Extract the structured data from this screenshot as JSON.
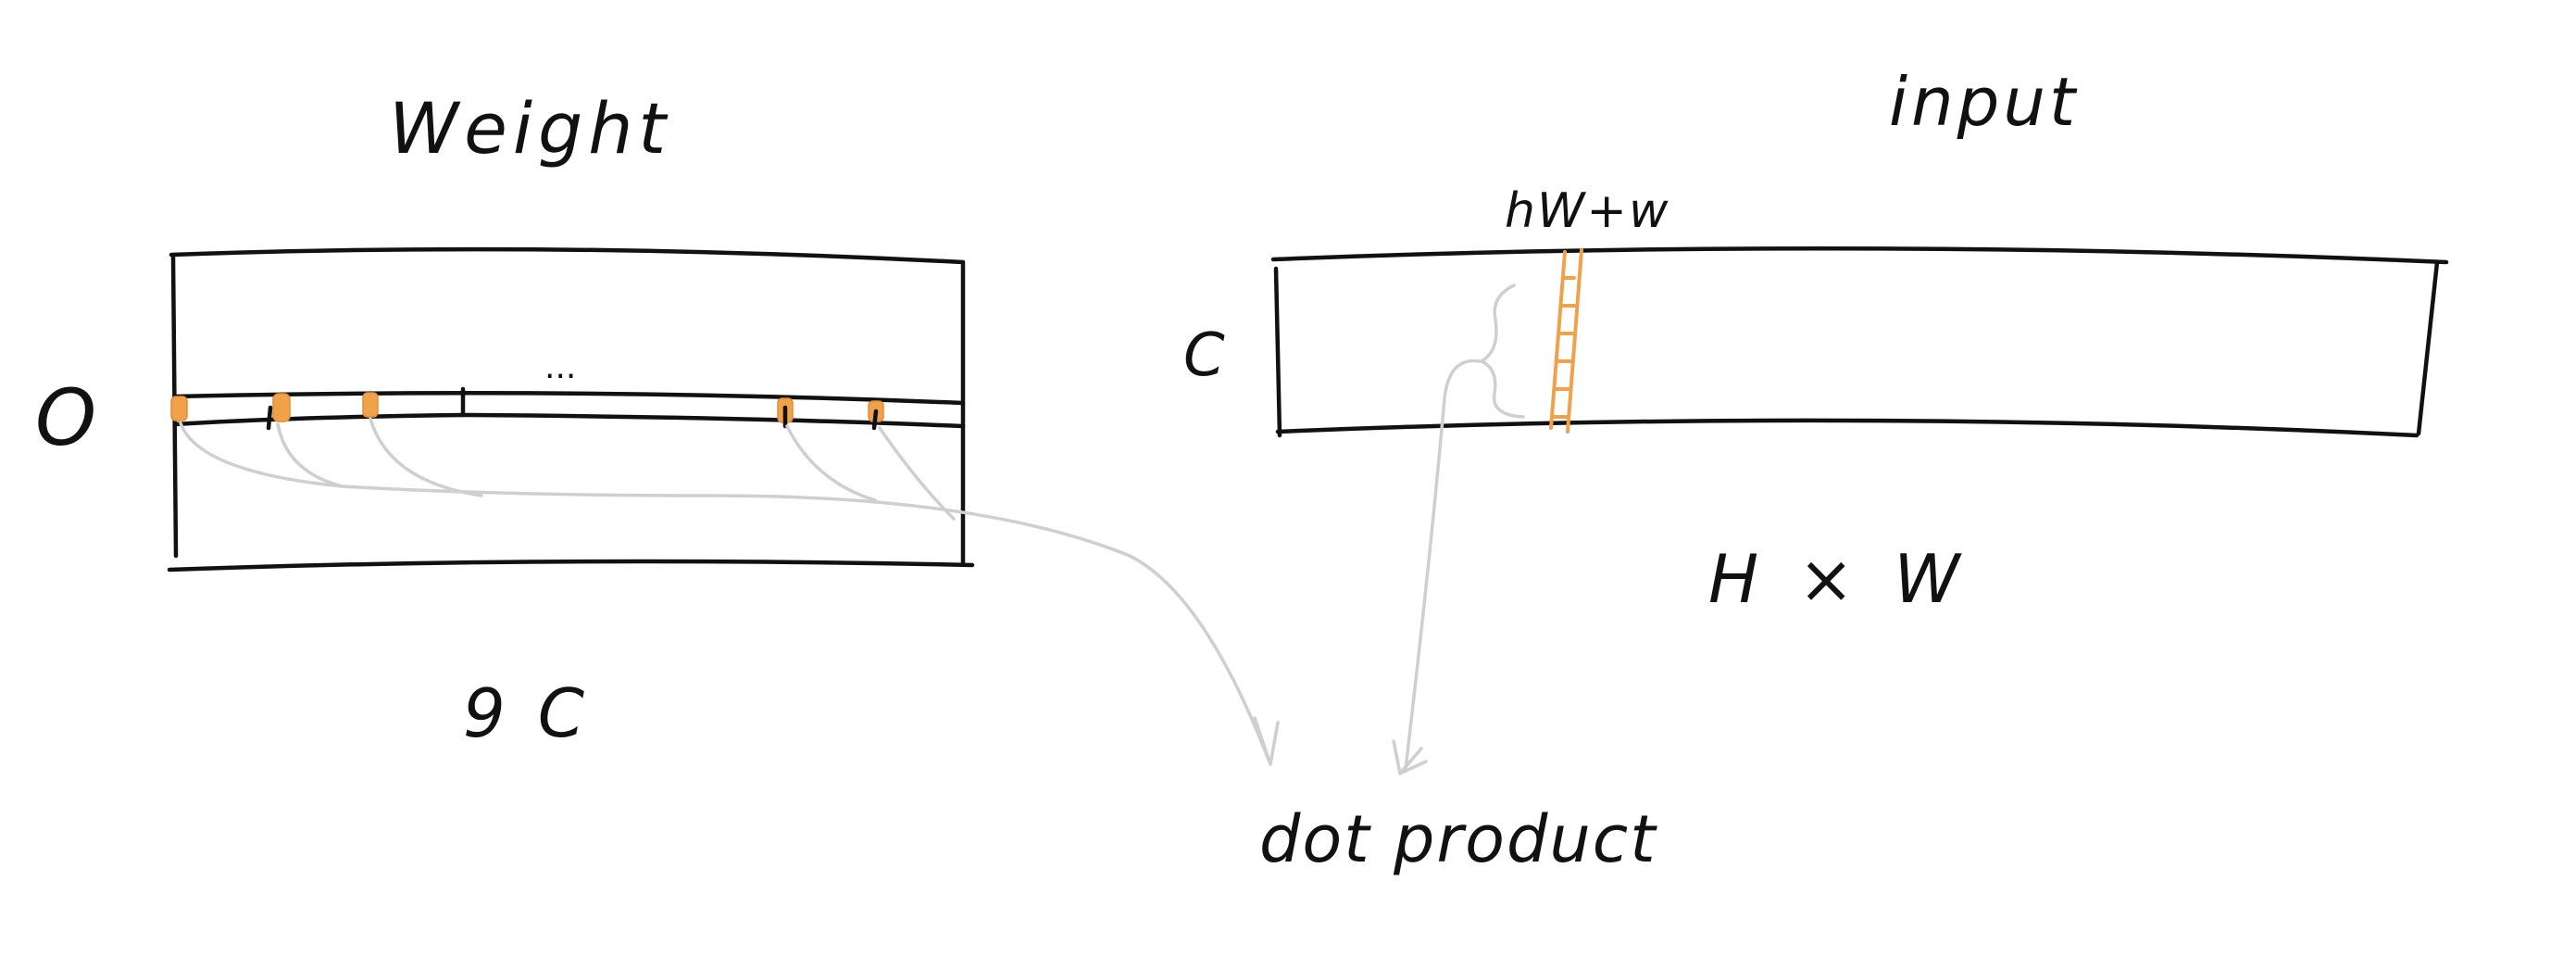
{
  "labels": {
    "weight_title": "Weight",
    "input_title": "input",
    "weight_rows": "O",
    "weight_cols": "9 C",
    "input_rows": "C",
    "input_cols": "H × W",
    "input_index": "hW+w",
    "row_ellipsis": "...",
    "result": "dot product"
  },
  "colors": {
    "ink": "#111111",
    "highlight": "#f0a24a",
    "connector": "#cfcfcf"
  }
}
